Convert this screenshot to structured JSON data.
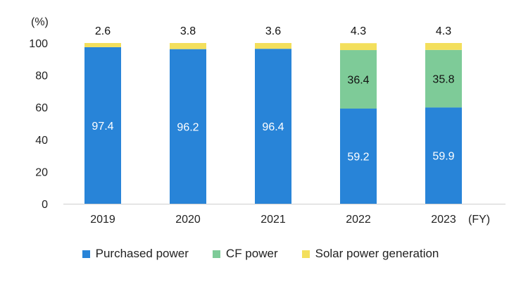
{
  "chart_data": {
    "type": "bar",
    "stacked": true,
    "categories": [
      "2019",
      "2020",
      "2021",
      "2022",
      "2023"
    ],
    "series": [
      {
        "name": "Purchased power",
        "values": [
          97.4,
          96.2,
          96.4,
          59.2,
          59.9
        ],
        "color": "#2884d8",
        "label_color": "#ffffff"
      },
      {
        "name": "CF power",
        "values": [
          0,
          0,
          0,
          36.4,
          35.8
        ],
        "color": "#7ecb98",
        "label_color": "#111111"
      },
      {
        "name": "Solar power generation",
        "values": [
          2.6,
          3.8,
          3.6,
          4.3,
          4.3
        ],
        "color": "#f3df5c",
        "label_color": "#111111"
      }
    ],
    "ylabel": "(%)",
    "xlabel": "(FY)",
    "ylim": [
      0,
      100
    ],
    "yticks": [
      0,
      20,
      40,
      60,
      80,
      100
    ],
    "grid": false,
    "legend_position": "bottom"
  }
}
